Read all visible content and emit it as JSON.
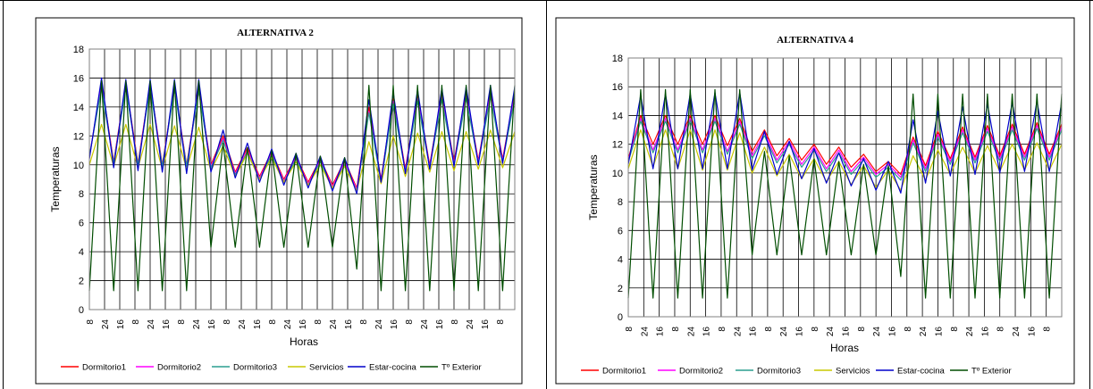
{
  "chart_data": [
    {
      "type": "line",
      "title": "ALTERNATIVA 2",
      "xlabel": "Horas",
      "ylabel": "Temperaturas",
      "ylim": [
        0,
        18
      ],
      "yticks": [
        0,
        2,
        4,
        6,
        8,
        10,
        12,
        14,
        16,
        18
      ],
      "xtick_labels": [
        "8",
        "24",
        "16",
        "8",
        "24",
        "16",
        "8",
        "24",
        "16",
        "8",
        "24",
        "16",
        "8",
        "24",
        "16",
        "8",
        "24",
        "16",
        "8",
        "24",
        "16",
        "8",
        "24",
        "16",
        "8",
        "24",
        "16",
        "8"
      ],
      "grid": true,
      "legend_position": "bottom",
      "series": [
        {
          "name": "Dormitorio1",
          "color": "#ff0000",
          "values": [
            10.5,
            15.7,
            10.2,
            15.6,
            10.1,
            15.6,
            10.0,
            15.4,
            10.0,
            15.3,
            10.0,
            12.0,
            9.5,
            11.2,
            9.2,
            10.9,
            9.0,
            10.6,
            8.8,
            10.4,
            8.6,
            10.3,
            8.4,
            14.0,
            9.0,
            14.6,
            9.7,
            14.8,
            10.0,
            14.9,
            10.2,
            15.0,
            10.3,
            15.1,
            10.4,
            15.0
          ]
        },
        {
          "name": "Dormitorio2",
          "color": "#ff00ff",
          "values": [
            10.6,
            15.5,
            10.1,
            15.4,
            10.0,
            15.5,
            9.9,
            15.3,
            9.9,
            15.1,
            9.9,
            11.8,
            9.4,
            11.0,
            9.1,
            10.8,
            8.9,
            10.5,
            8.7,
            10.3,
            8.5,
            10.2,
            8.3,
            13.7,
            8.9,
            14.4,
            9.6,
            14.6,
            9.9,
            14.7,
            10.1,
            14.8,
            10.2,
            14.9,
            10.3,
            14.8
          ]
        },
        {
          "name": "Dormitorio3",
          "color": "#2a9d8f",
          "values": [
            10.6,
            15.3,
            10.1,
            15.3,
            10.0,
            15.3,
            9.9,
            15.2,
            9.9,
            15.1,
            9.8,
            11.7,
            9.3,
            10.9,
            9.0,
            10.7,
            8.8,
            10.4,
            8.6,
            10.2,
            8.4,
            10.0,
            8.2,
            13.6,
            8.8,
            14.2,
            9.5,
            14.4,
            9.8,
            14.5,
            10.0,
            14.6,
            10.1,
            14.7,
            10.2,
            14.6
          ]
        },
        {
          "name": "Servicios",
          "color": "#c8c800",
          "values": [
            10.0,
            12.8,
            9.9,
            12.8,
            9.8,
            12.8,
            9.7,
            12.7,
            9.7,
            12.6,
            9.6,
            11.3,
            9.2,
            10.8,
            9.0,
            10.5,
            8.8,
            10.2,
            8.6,
            10.0,
            8.4,
            9.9,
            8.2,
            11.6,
            8.7,
            12.0,
            9.2,
            12.2,
            9.5,
            12.3,
            9.6,
            12.3,
            9.7,
            12.4,
            9.8,
            12.3
          ]
        },
        {
          "name": "Estar-cocina",
          "color": "#0000cc",
          "values": [
            10.4,
            16.0,
            9.8,
            15.9,
            9.6,
            15.9,
            9.5,
            15.9,
            9.4,
            15.9,
            9.5,
            12.4,
            9.1,
            11.5,
            8.8,
            11.1,
            8.6,
            10.8,
            8.4,
            10.6,
            8.2,
            10.5,
            8.0,
            14.5,
            8.8,
            15.0,
            9.4,
            15.2,
            9.7,
            15.3,
            9.9,
            15.4,
            10.0,
            15.5,
            10.1,
            15.4
          ]
        },
        {
          "name": "Tº Exterior",
          "color": "#004d00",
          "values": [
            1.3,
            15.8,
            1.3,
            15.8,
            1.3,
            15.8,
            1.3,
            15.8,
            1.3,
            15.8,
            4.3,
            11.5,
            4.3,
            11.2,
            4.3,
            11.0,
            4.3,
            10.8,
            4.3,
            10.6,
            4.3,
            10.5,
            2.8,
            15.5,
            1.3,
            15.5,
            1.3,
            15.5,
            1.3,
            15.5,
            1.3,
            15.5,
            1.3,
            15.5,
            1.3,
            15.5
          ]
        }
      ]
    },
    {
      "type": "line",
      "title": "ALTERNATIVA 4",
      "xlabel": "Horas",
      "ylabel": "Temperaturas",
      "ylim": [
        0,
        18
      ],
      "yticks": [
        0,
        2,
        4,
        6,
        8,
        10,
        12,
        14,
        16,
        18
      ],
      "xtick_labels": [
        "8",
        "24",
        "16",
        "8",
        "24",
        "16",
        "8",
        "24",
        "16",
        "8",
        "24",
        "16",
        "8",
        "24",
        "16",
        "8",
        "24",
        "16",
        "8",
        "24",
        "16",
        "8",
        "24",
        "16",
        "8",
        "24",
        "16",
        "8"
      ],
      "grid": true,
      "legend_position": "bottom",
      "series": [
        {
          "name": "Dormitorio1",
          "color": "#ff0000",
          "values": [
            11.0,
            14.0,
            12.0,
            14.0,
            12.0,
            14.0,
            12.0,
            14.0,
            11.9,
            13.8,
            11.5,
            13.0,
            11.2,
            12.4,
            10.9,
            12.0,
            10.6,
            11.8,
            10.4,
            11.3,
            10.1,
            10.8,
            9.9,
            12.5,
            10.5,
            12.9,
            11.0,
            13.2,
            11.1,
            13.3,
            11.2,
            13.4,
            11.3,
            13.5,
            11.3,
            13.4
          ]
        },
        {
          "name": "Dormitorio2",
          "color": "#ff00ff",
          "values": [
            10.9,
            13.8,
            11.6,
            13.8,
            11.6,
            13.8,
            11.6,
            13.8,
            11.5,
            13.6,
            11.2,
            12.8,
            10.9,
            12.2,
            10.6,
            11.8,
            10.3,
            11.6,
            10.1,
            11.1,
            9.9,
            10.6,
            9.7,
            12.3,
            10.3,
            12.7,
            10.8,
            13.0,
            10.9,
            13.1,
            11.0,
            13.2,
            11.1,
            13.3,
            11.1,
            13.2
          ]
        },
        {
          "name": "Dormitorio3",
          "color": "#2a9d8f",
          "values": [
            10.8,
            13.6,
            11.4,
            13.6,
            11.4,
            13.6,
            11.4,
            13.6,
            11.3,
            13.4,
            11.0,
            12.6,
            10.7,
            12.0,
            10.4,
            11.6,
            10.1,
            11.4,
            9.9,
            10.9,
            9.7,
            10.4,
            9.5,
            12.1,
            10.1,
            12.5,
            10.6,
            12.8,
            10.7,
            12.9,
            10.8,
            13.0,
            10.9,
            13.1,
            10.9,
            13.0
          ]
        },
        {
          "name": "Servicios",
          "color": "#c8c800",
          "values": [
            10.3,
            13.0,
            10.4,
            13.0,
            10.3,
            13.0,
            10.2,
            13.0,
            10.2,
            12.8,
            10.0,
            11.8,
            9.8,
            11.3,
            9.6,
            11.0,
            9.4,
            10.8,
            9.2,
            10.5,
            9.0,
            10.2,
            8.8,
            11.2,
            9.5,
            11.6,
            9.9,
            11.8,
            10.0,
            11.9,
            10.1,
            12.0,
            10.2,
            12.1,
            10.2,
            12.0
          ]
        },
        {
          "name": "Estar-cocina",
          "color": "#0000cc",
          "values": [
            10.6,
            15.4,
            10.3,
            15.5,
            10.3,
            15.5,
            10.3,
            15.6,
            10.3,
            15.6,
            10.2,
            12.9,
            9.9,
            12.2,
            9.6,
            11.7,
            9.3,
            11.4,
            9.1,
            11.0,
            8.8,
            10.8,
            8.6,
            13.7,
            9.3,
            14.3,
            9.8,
            14.6,
            9.9,
            14.8,
            10.0,
            14.9,
            10.1,
            15.0,
            10.1,
            14.9
          ]
        },
        {
          "name": "Tº Exterior",
          "color": "#004d00",
          "values": [
            1.3,
            15.8,
            1.3,
            15.8,
            1.3,
            15.8,
            1.3,
            15.8,
            1.3,
            15.8,
            4.3,
            11.5,
            4.3,
            11.2,
            4.3,
            11.0,
            4.3,
            10.8,
            4.3,
            10.6,
            4.3,
            10.5,
            2.8,
            15.5,
            1.3,
            15.5,
            1.3,
            15.5,
            1.3,
            15.5,
            1.3,
            15.5,
            1.3,
            15.5,
            1.3,
            15.5
          ]
        }
      ]
    }
  ]
}
